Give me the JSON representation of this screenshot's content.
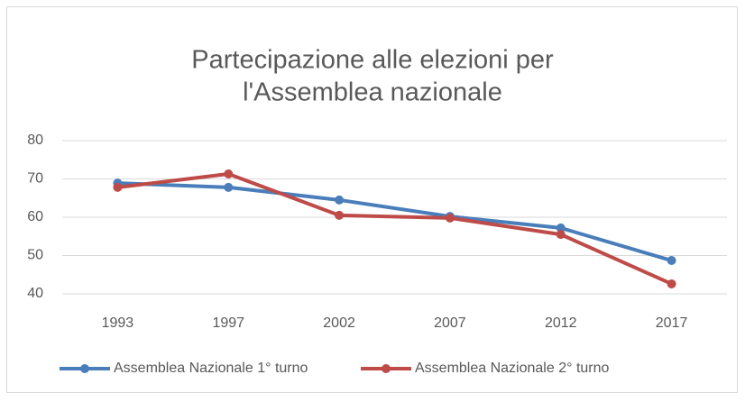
{
  "chart_data": {
    "type": "line",
    "title_lines": [
      "Partecipazione alle elezioni per",
      "l'Assemblea nazionale"
    ],
    "categories": [
      "1993",
      "1997",
      "2002",
      "2007",
      "2012",
      "2017"
    ],
    "series": [
      {
        "name": "Assemblea Nazionale 1° turno",
        "color": "#4a7ebb",
        "values": [
          68.9,
          67.8,
          64.5,
          60.2,
          57.2,
          48.7
        ]
      },
      {
        "name": "Assemblea Nazionale 2° turno",
        "color": "#be4b48",
        "values": [
          67.8,
          71.3,
          60.5,
          59.8,
          55.5,
          42.6
        ]
      }
    ],
    "ylim": [
      40,
      80
    ],
    "yticks": [
      40,
      50,
      60,
      70,
      80
    ],
    "grid": true,
    "legend": "bottom"
  }
}
